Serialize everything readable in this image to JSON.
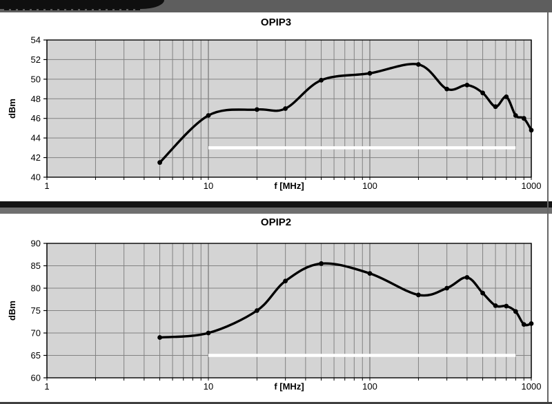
{
  "colors": {
    "plot_background": "#d4d4d4",
    "gridline": "#828282",
    "axis": "#000000",
    "series": "#000000",
    "reference_line": "#ffffff",
    "top_strip": "#5e5e5e",
    "banner_tab": "#0f0f0f",
    "separator_black": "#141414",
    "separator_gray": "#6f6f6f"
  },
  "chart_data": [
    {
      "type": "line",
      "title": "OPIP3",
      "xlabel": "f [MHz]",
      "ylabel": "dBm",
      "x_scale": "log",
      "xlim": [
        1,
        1000
      ],
      "x_tick_labels": [
        1,
        10,
        100,
        1000
      ],
      "ylim": [
        40,
        54
      ],
      "y_tick_step": 2,
      "grid": "on",
      "x": [
        5,
        10,
        20,
        30,
        50,
        100,
        200,
        300,
        400,
        500,
        600,
        700,
        800,
        900,
        1000
      ],
      "y": [
        41.5,
        46.3,
        46.9,
        47.0,
        49.9,
        50.6,
        51.5,
        49.0,
        49.4,
        48.6,
        47.2,
        48.2,
        46.3,
        46.0,
        44.8
      ],
      "reference_line": {
        "y": 43,
        "x_from": 10,
        "x_to": 800,
        "color": "#ffffff"
      }
    },
    {
      "type": "line",
      "title": "OPIP2",
      "xlabel": "f [MHz]",
      "ylabel": "dBm",
      "x_scale": "log",
      "xlim": [
        1,
        1000
      ],
      "x_tick_labels": [
        1,
        10,
        100,
        1000
      ],
      "ylim": [
        60,
        90
      ],
      "y_tick_step": 5,
      "grid": "on",
      "x": [
        5,
        10,
        20,
        30,
        50,
        100,
        200,
        300,
        400,
        500,
        600,
        700,
        800,
        900,
        1000
      ],
      "y": [
        69.0,
        70.0,
        75.0,
        81.6,
        85.5,
        83.3,
        78.5,
        80.0,
        82.4,
        78.9,
        76.1,
        76.0,
        74.8,
        71.9,
        72.1
      ],
      "reference_line": {
        "y": 65,
        "x_from": 10,
        "x_to": 800,
        "color": "#ffffff"
      }
    }
  ]
}
